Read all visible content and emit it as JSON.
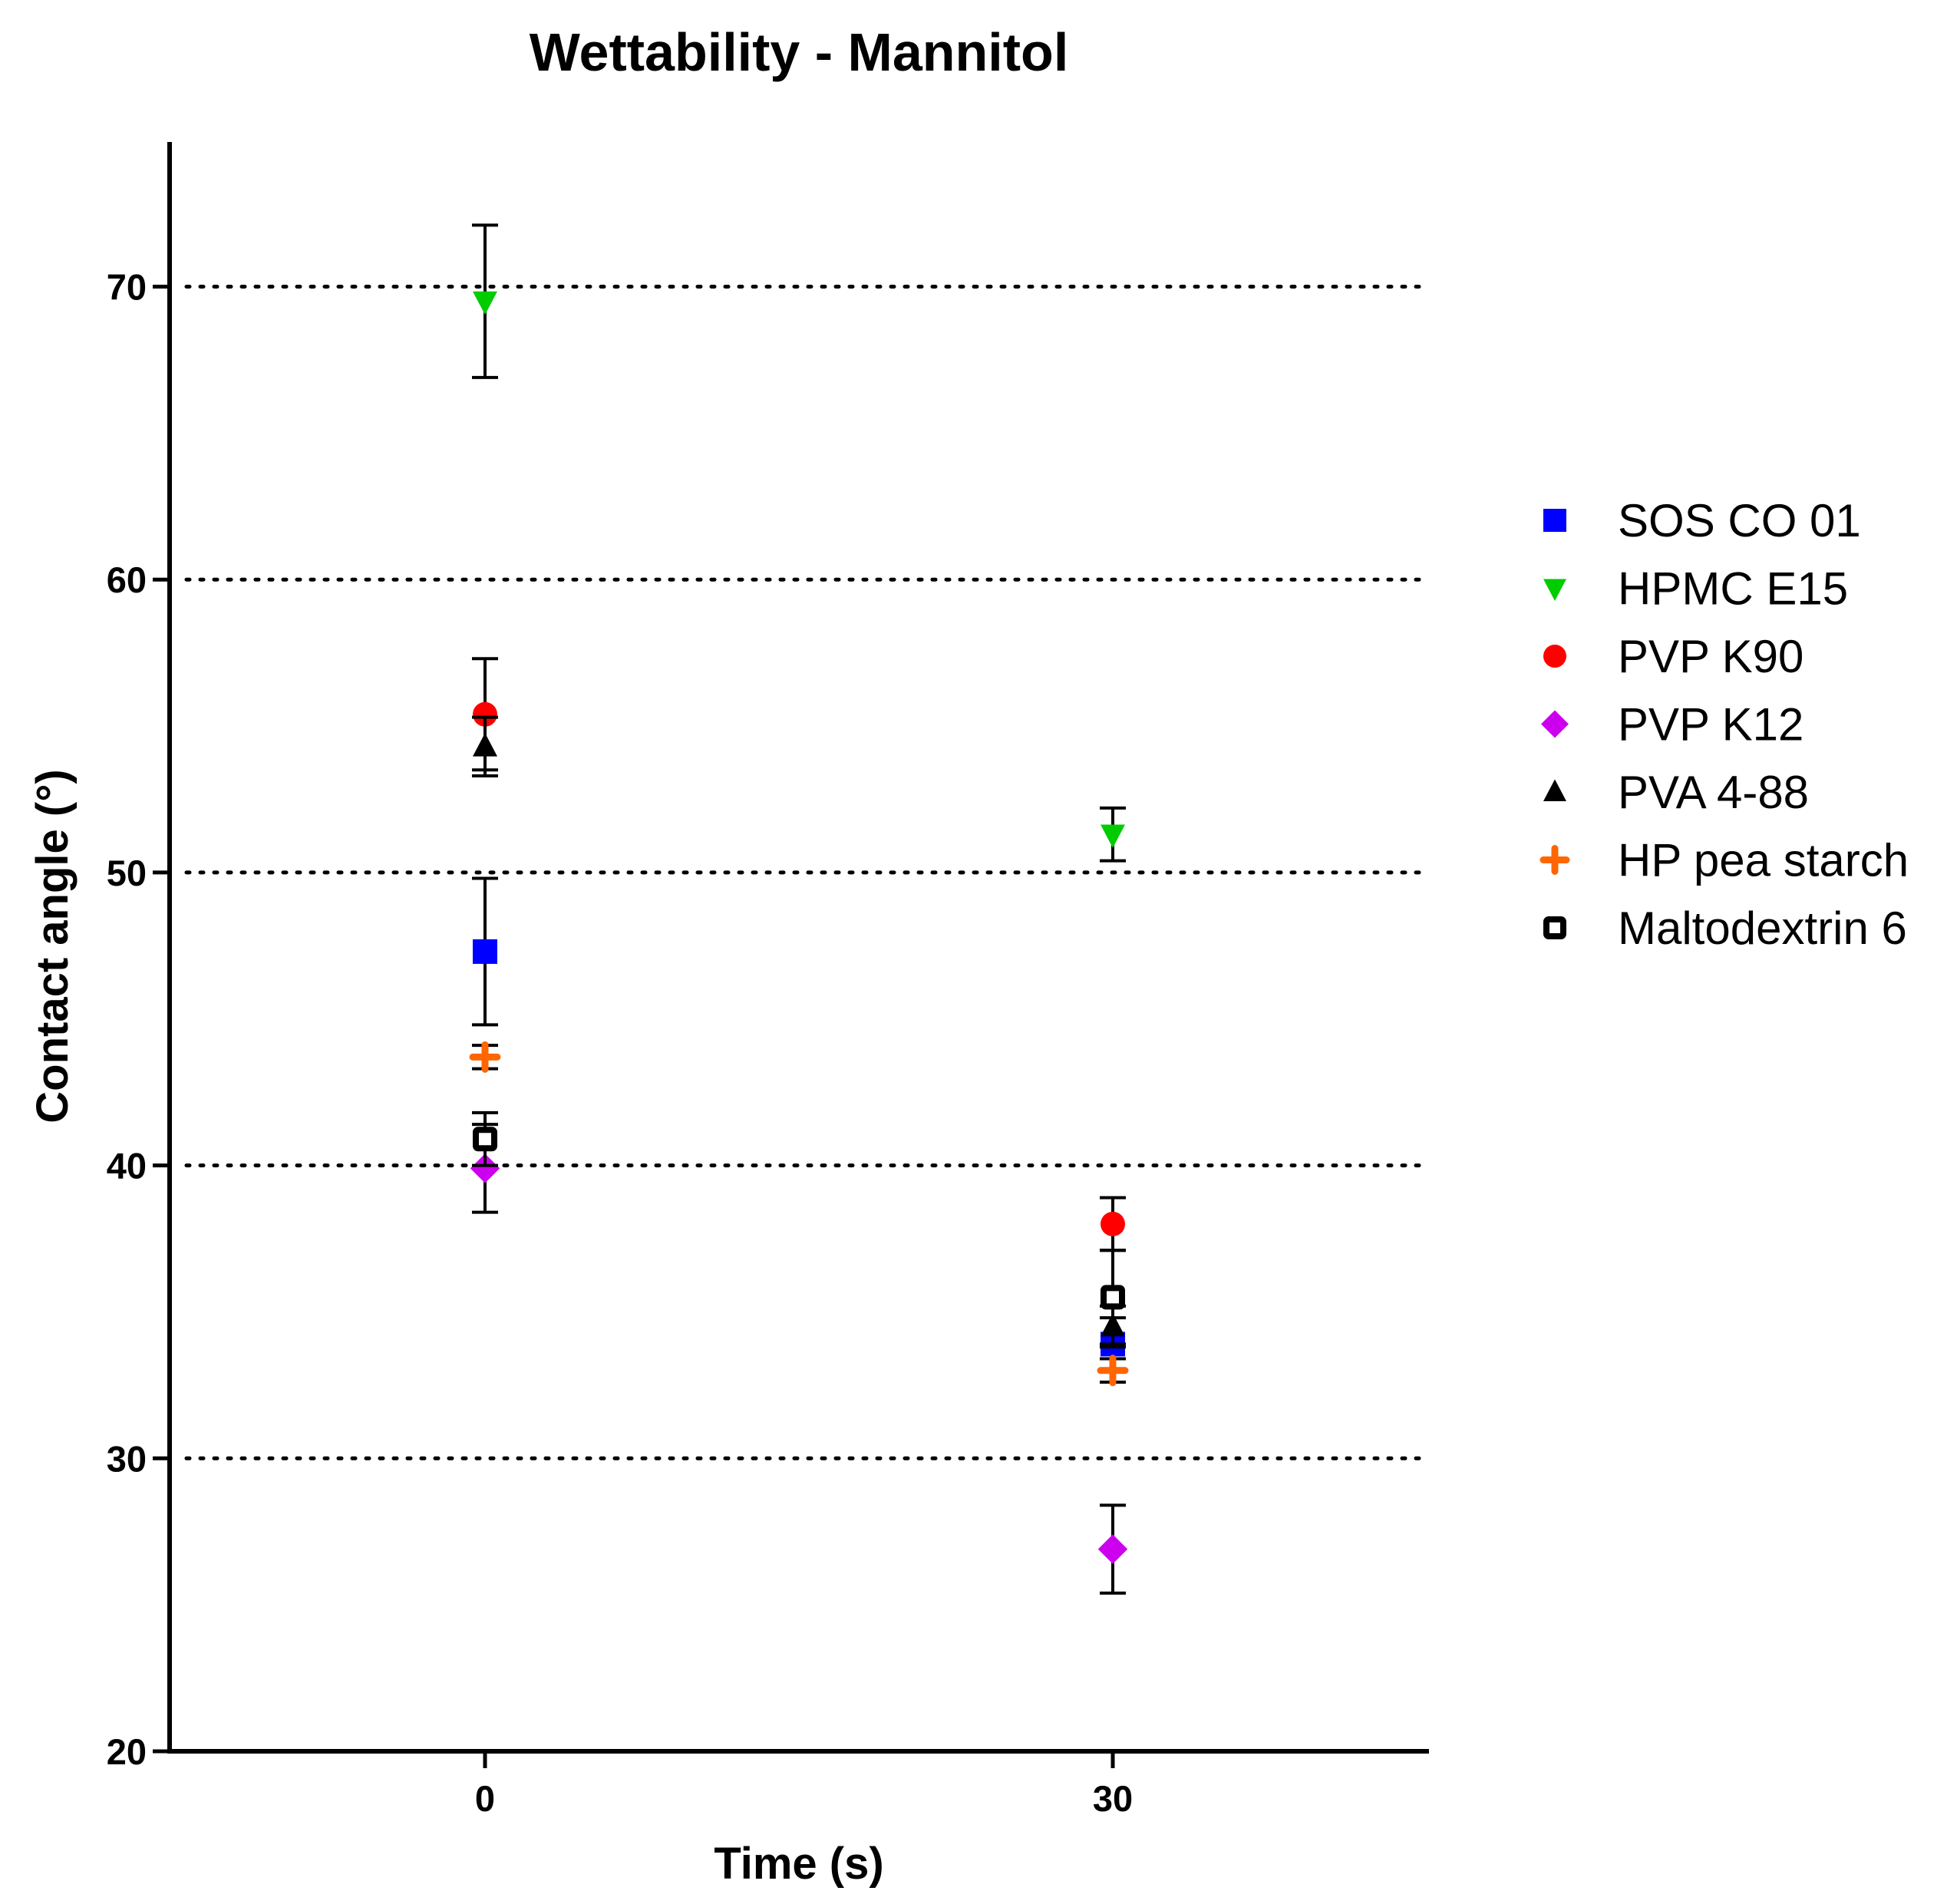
{
  "chart_data": {
    "type": "scatter",
    "title": "Wettability - Mannitol",
    "xlabel": "Time (s)",
    "ylabel": "Contact angle (°)",
    "x": [
      0,
      30
    ],
    "x_ticks": [
      "0",
      "30"
    ],
    "y_ticks": [
      "20",
      "30",
      "40",
      "50",
      "60",
      "70"
    ],
    "ylim": [
      20,
      75
    ],
    "grid": "horizontal dotted at 30, 40, 50, 60, 70",
    "legend_position": "right",
    "series": [
      {
        "name": "SOS CO 01",
        "marker": "square",
        "color": "#0000ff",
        "values": [
          47.3,
          33.9
        ],
        "errors": [
          2.5,
          0.9
        ]
      },
      {
        "name": "HPMC E15",
        "marker": "triangle-down",
        "color": "#00cc00",
        "values": [
          69.5,
          51.3
        ],
        "errors": [
          2.6,
          0.9
        ]
      },
      {
        "name": "PVP K90",
        "marker": "circle",
        "color": "#ff0000",
        "values": [
          55.4,
          38.0
        ],
        "errors": [
          1.9,
          0.9
        ]
      },
      {
        "name": "PVP K12",
        "marker": "diamond",
        "color": "#cc00ee",
        "values": [
          39.9,
          26.9
        ],
        "errors": [
          1.5,
          1.5
        ]
      },
      {
        "name": "PVA 4-88",
        "marker": "triangle-up",
        "color": "#000000",
        "values": [
          54.3,
          34.5
        ],
        "errors": [
          1.0,
          0.7
        ]
      },
      {
        "name": "HP pea starch",
        "marker": "plus",
        "color": "#ff6600",
        "values": [
          43.7,
          33.0
        ],
        "errors": [
          0.4,
          0.4
        ]
      },
      {
        "name": "Maltodextrin 6",
        "marker": "open-square",
        "color": "#000000",
        "values": [
          40.9,
          35.5
        ],
        "errors": [
          0.9,
          1.6
        ]
      }
    ]
  }
}
